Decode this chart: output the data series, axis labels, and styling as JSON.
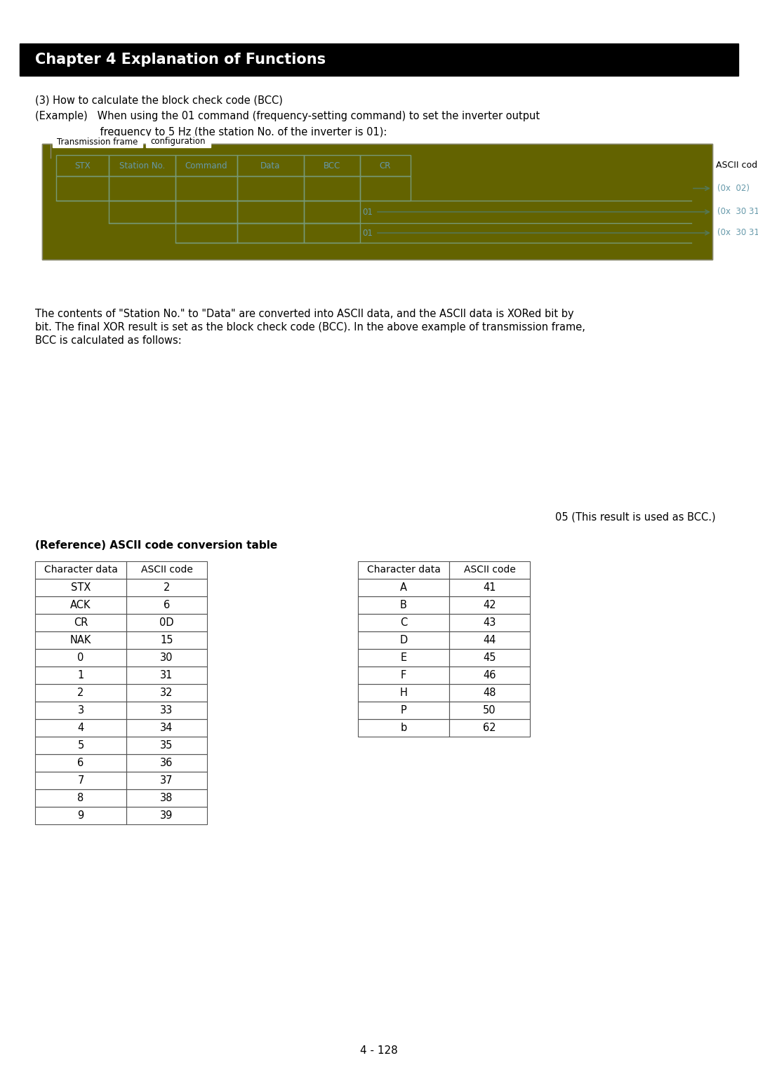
{
  "title": "Chapter 4 Explanation of Functions",
  "title_bg": "#000000",
  "title_fg": "#ffffff",
  "page_bg": "#ffffff",
  "page_number": "4 - 128",
  "para1": "(3) How to calculate the block check code (BCC)",
  "para2a": "(Example)   When using the 01 command (frequency-setting command) to set the inverter output",
  "para2b": "                    frequency to 5 Hz (the station No. of the inverter is 01):",
  "frame_bg": "#636300",
  "frame_label": "Transmission frame",
  "frame_label2": "configuration",
  "cells": [
    "STX",
    "Station No.",
    "Command",
    "Data",
    "BCC",
    "CR"
  ],
  "cell_text_color": "#6699aa",
  "cell_border_color": "#779977",
  "body_text_lines": [
    "The contents of \"Station No.\" to \"Data\" are converted into ASCII data, and the ASCII data is XORed bit by",
    "bit. The final XOR result is set as the block check code (BCC). In the above example of transmission frame,",
    "BCC is calculated as follows:"
  ],
  "bcc_result_text": "05 (This result is used as BCC.)",
  "ref_title": "(Reference) ASCII code conversion table",
  "table1_headers": [
    "Character data",
    "ASCII code"
  ],
  "table1_rows": [
    [
      "STX",
      "2"
    ],
    [
      "ACK",
      "6"
    ],
    [
      "CR",
      "0D"
    ],
    [
      "NAK",
      "15"
    ],
    [
      "0",
      "30"
    ],
    [
      "1",
      "31"
    ],
    [
      "2",
      "32"
    ],
    [
      "3",
      "33"
    ],
    [
      "4",
      "34"
    ],
    [
      "5",
      "35"
    ],
    [
      "6",
      "36"
    ],
    [
      "7",
      "37"
    ],
    [
      "8",
      "38"
    ],
    [
      "9",
      "39"
    ]
  ],
  "table2_headers": [
    "Character data",
    "ASCII code"
  ],
  "table2_rows": [
    [
      "A",
      "41"
    ],
    [
      "B",
      "42"
    ],
    [
      "C",
      "43"
    ],
    [
      "D",
      "44"
    ],
    [
      "E",
      "45"
    ],
    [
      "F",
      "46"
    ],
    [
      "H",
      "48"
    ],
    [
      "P",
      "50"
    ],
    [
      "b",
      "62"
    ]
  ]
}
